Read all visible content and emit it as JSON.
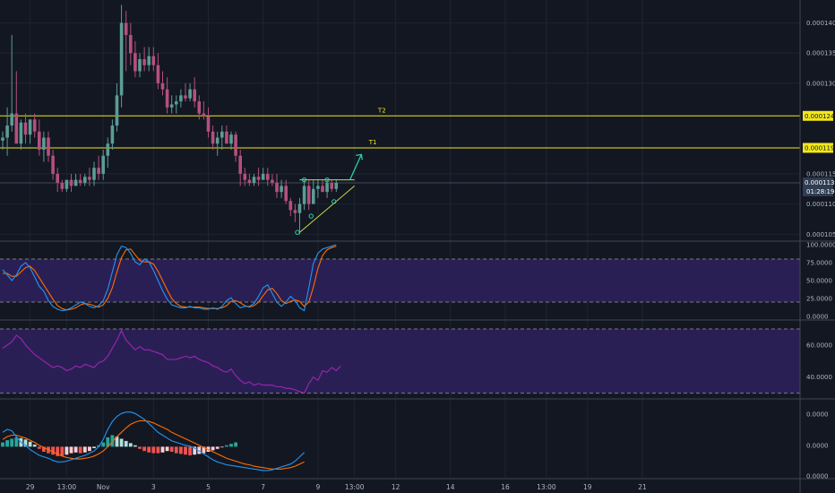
{
  "chart_data": {
    "type": "candlestick",
    "price_pane": {
      "ylim": [
        0.000104,
        0.0001435
      ],
      "price_ticks": [
        "0.0001400",
        "0.0001350",
        "0.0001300",
        "0.0001150",
        "0.0001100",
        "0.0001050"
      ],
      "target_lines": [
        {
          "name": "T2",
          "price": 0.0001246,
          "label": "0.0001246"
        },
        {
          "name": "T1",
          "price": 0.0001193,
          "label": "0.0001193"
        }
      ],
      "current_price": {
        "price": 0.0001135,
        "label": "0.0001135",
        "countdown": "01:28:19"
      },
      "candles": [
        [
          0.0001205,
          0.000122,
          0.000119,
          0.000121
        ],
        [
          0.000121,
          0.000126,
          0.000118,
          0.000123
        ],
        [
          0.000123,
          0.000138,
          0.000122,
          0.000125
        ],
        [
          0.000125,
          0.000132,
          0.00012,
          0.00012
        ],
        [
          0.00012,
          0.000124,
          0.000119,
          0.0001235
        ],
        [
          0.0001235,
          0.000125,
          0.00012,
          0.0001215
        ],
        [
          0.0001215,
          0.000124,
          0.00012,
          0.000124
        ],
        [
          0.000124,
          0.000125,
          0.000121,
          0.000122
        ],
        [
          0.000122,
          0.000124,
          0.000118,
          0.000119
        ],
        [
          0.000119,
          0.000122,
          0.000117,
          0.000121
        ],
        [
          0.000121,
          0.000122,
          0.000117,
          0.000118
        ],
        [
          0.000118,
          0.000119,
          0.000114,
          0.000115
        ],
        [
          0.000115,
          0.000116,
          0.000112,
          0.0001135
        ],
        [
          0.0001135,
          0.000114,
          0.000112,
          0.0001125
        ],
        [
          0.0001125,
          0.000114,
          0.000112,
          0.000114
        ],
        [
          0.000114,
          0.000115,
          0.000112,
          0.000113
        ],
        [
          0.000113,
          0.000115,
          0.000113,
          0.000114
        ],
        [
          0.000114,
          0.000115,
          0.000113,
          0.0001135
        ],
        [
          0.0001135,
          0.000115,
          0.000113,
          0.0001145
        ],
        [
          0.0001145,
          0.000116,
          0.000113,
          0.000114
        ],
        [
          0.000114,
          0.000117,
          0.000113,
          0.000116
        ],
        [
          0.000116,
          0.000118,
          0.000114,
          0.000115
        ],
        [
          0.000115,
          0.000119,
          0.000114,
          0.000118
        ],
        [
          0.000118,
          0.000121,
          0.000116,
          0.00012
        ],
        [
          0.00012,
          0.000124,
          0.000119,
          0.000123
        ],
        [
          0.000123,
          0.00013,
          0.000122,
          0.000128
        ],
        [
          0.000128,
          0.000143,
          0.000126,
          0.00014
        ],
        [
          0.00014,
          0.000142,
          0.000132,
          0.000138
        ],
        [
          0.000138,
          0.00014,
          0.000133,
          0.000135
        ],
        [
          0.000135,
          0.000137,
          0.000131,
          0.000132
        ],
        [
          0.000132,
          0.000135,
          0.000131,
          0.000134
        ],
        [
          0.000134,
          0.000136,
          0.000132,
          0.000133
        ],
        [
          0.000133,
          0.000136,
          0.000132,
          0.0001345
        ],
        [
          0.0001345,
          0.000136,
          0.000132,
          0.000133
        ],
        [
          0.000133,
          0.000135,
          0.000129,
          0.00013
        ],
        [
          0.00013,
          0.000132,
          0.000128,
          0.000129
        ],
        [
          0.000129,
          0.000131,
          0.000125,
          0.000126
        ],
        [
          0.000126,
          0.000128,
          0.000125,
          0.0001265
        ],
        [
          0.0001265,
          0.000128,
          0.000125,
          0.000127
        ],
        [
          0.000127,
          0.000129,
          0.000126,
          0.000128
        ],
        [
          0.000128,
          0.00013,
          0.000127,
          0.0001275
        ],
        [
          0.0001275,
          0.00013,
          0.000127,
          0.000129
        ],
        [
          0.000129,
          0.000131,
          0.000126,
          0.000127
        ],
        [
          0.000127,
          0.000128,
          0.000124,
          0.000125
        ],
        [
          0.000125,
          0.000127,
          0.000124,
          0.0001245
        ],
        [
          0.0001245,
          0.000126,
          0.000121,
          0.000122
        ],
        [
          0.000122,
          0.000123,
          0.000119,
          0.00012
        ],
        [
          0.00012,
          0.000122,
          0.000118,
          0.000121
        ],
        [
          0.000121,
          0.000123,
          0.000119,
          0.000122
        ],
        [
          0.000122,
          0.000123,
          0.00012,
          0.00012
        ],
        [
          0.00012,
          0.000122,
          0.000119,
          0.0001215
        ],
        [
          0.0001215,
          0.000122,
          0.000117,
          0.000118
        ],
        [
          0.000118,
          0.000119,
          0.000113,
          0.000115
        ],
        [
          0.000115,
          0.000116,
          0.000113,
          0.000114
        ],
        [
          0.000114,
          0.000115,
          0.000113,
          0.0001135
        ],
        [
          0.0001135,
          0.000115,
          0.000113,
          0.0001145
        ],
        [
          0.0001145,
          0.000116,
          0.000113,
          0.000114
        ],
        [
          0.000114,
          0.000116,
          0.000114,
          0.000115
        ],
        [
          0.000115,
          0.000116,
          0.000113,
          0.000114
        ],
        [
          0.000114,
          0.000115,
          0.000113,
          0.0001135
        ],
        [
          0.0001135,
          0.000115,
          0.000111,
          0.000112
        ],
        [
          0.000112,
          0.000114,
          0.000111,
          0.000113
        ],
        [
          0.000113,
          0.000114,
          0.00011,
          0.0001105
        ],
        [
          0.0001105,
          0.000111,
          0.000108,
          0.000109
        ],
        [
          0.000109,
          0.00011,
          0.000107,
          0.0001085
        ],
        [
          0.0001085,
          0.000111,
          0.000105,
          0.00011
        ],
        [
          0.00011,
          0.000114,
          0.000109,
          0.000113
        ],
        [
          0.000113,
          0.000114,
          0.000109,
          0.00011
        ],
        [
          0.00011,
          0.000114,
          0.00011,
          0.0001125
        ],
        [
          0.0001125,
          0.000114,
          0.000111,
          0.000113
        ],
        [
          0.000113,
          0.000114,
          0.000112,
          0.000112
        ],
        [
          0.000112,
          0.000114,
          0.000111,
          0.0001135
        ],
        [
          0.0001135,
          0.000114,
          0.000112,
          0.0001125
        ],
        [
          0.0001125,
          0.000114,
          0.000112,
          0.0001135
        ]
      ]
    },
    "stoch_pane": {
      "ylim": [
        0,
        100
      ],
      "ticks": [
        "100.0000",
        "75.0000",
        "50.0000",
        "25.0000",
        "0.0000"
      ],
      "band": [
        20,
        80
      ],
      "k": [
        65,
        58,
        50,
        58,
        70,
        75,
        68,
        55,
        42,
        35,
        22,
        14,
        10,
        8,
        9,
        12,
        16,
        20,
        18,
        14,
        12,
        15,
        22,
        38,
        62,
        86,
        98,
        96,
        88,
        76,
        72,
        80,
        76,
        64,
        50,
        36,
        24,
        16,
        14,
        12,
        12,
        14,
        12,
        12,
        10,
        10,
        12,
        10,
        14,
        22,
        26,
        18,
        12,
        14,
        14,
        18,
        28,
        40,
        44,
        32,
        20,
        14,
        20,
        28,
        22,
        12,
        8,
        40,
        74,
        88,
        94,
        96,
        98,
        100
      ],
      "d": [
        60,
        60,
        56,
        56,
        62,
        68,
        70,
        64,
        54,
        44,
        34,
        24,
        15,
        11,
        9,
        10,
        12,
        16,
        18,
        17,
        15,
        13,
        16,
        25,
        40,
        62,
        82,
        93,
        94,
        86,
        78,
        76,
        76,
        73,
        63,
        50,
        37,
        25,
        18,
        14,
        13,
        13,
        13,
        13,
        12,
        11,
        11,
        11,
        12,
        15,
        21,
        22,
        19,
        15,
        13,
        15,
        20,
        29,
        37,
        39,
        32,
        22,
        18,
        21,
        23,
        21,
        14,
        20,
        41,
        67,
        85,
        93,
        96,
        98
      ]
    },
    "rsi_pane": {
      "ylim": [
        27,
        75
      ],
      "ticks": [
        "60.0000",
        "40.0000"
      ],
      "band": [
        30,
        70
      ],
      "values": [
        58,
        60,
        62,
        66,
        64,
        60,
        57,
        54,
        52,
        50,
        48,
        46,
        47,
        46,
        44,
        45,
        47,
        46,
        48,
        47,
        46,
        49,
        50,
        53,
        58,
        63,
        69,
        63,
        60,
        57,
        59,
        57,
        57,
        56,
        55,
        54,
        51,
        51,
        51,
        52,
        53,
        52,
        53,
        51,
        50,
        49,
        47,
        46,
        44,
        43,
        45,
        41,
        38,
        36,
        37,
        35,
        36,
        35,
        35,
        35,
        34,
        34,
        33,
        33,
        32,
        31,
        30,
        36,
        40,
        38,
        44,
        43,
        46,
        44,
        47
      ]
    },
    "macd_pane": {
      "ylim": [
        -4.3e-06,
        6.5e-06
      ],
      "ticks": [
        "0.0000",
        "0.0000",
        "0.0000"
      ],
      "macd": [
        2.0,
        2.4,
        2.2,
        1.4,
        0.6,
        0.2,
        -0.4,
        -0.8,
        -1.2,
        -1.4,
        -1.6,
        -1.9,
        -2.1,
        -2.1,
        -2.0,
        -1.8,
        -1.6,
        -1.4,
        -1.2,
        -0.9,
        -0.6,
        0.0,
        1.0,
        2.4,
        3.5,
        4.2,
        4.6,
        4.8,
        4.8,
        4.6,
        4.2,
        3.8,
        3.2,
        2.6,
        2.0,
        1.6,
        1.2,
        0.8,
        0.6,
        0.4,
        0.2,
        0.1,
        -0.2,
        -0.6,
        -1.0,
        -1.4,
        -1.8,
        -2.1,
        -2.3,
        -2.5,
        -2.6,
        -2.7,
        -2.8,
        -2.9,
        -3.0,
        -3.1,
        -3.2,
        -3.3,
        -3.3,
        -3.2,
        -3.0,
        -2.8,
        -2.6,
        -2.4,
        -2.0,
        -1.4,
        -0.8
      ],
      "signal": [
        1.0,
        1.4,
        1.6,
        1.6,
        1.4,
        1.2,
        0.9,
        0.6,
        0.2,
        -0.1,
        -0.4,
        -0.7,
        -1.0,
        -1.3,
        -1.5,
        -1.6,
        -1.7,
        -1.7,
        -1.6,
        -1.5,
        -1.3,
        -1.0,
        -0.6,
        0.0,
        0.7,
        1.4,
        2.0,
        2.6,
        3.1,
        3.4,
        3.6,
        3.6,
        3.5,
        3.3,
        3.0,
        2.7,
        2.4,
        2.0,
        1.7,
        1.4,
        1.1,
        0.8,
        0.5,
        0.2,
        -0.1,
        -0.4,
        -0.7,
        -1.0,
        -1.3,
        -1.6,
        -1.8,
        -2.0,
        -2.2,
        -2.4,
        -2.5,
        -2.7,
        -2.8,
        -2.9,
        -3.0,
        -3.1,
        -3.1,
        -3.1,
        -3.0,
        -2.9,
        -2.7,
        -2.4,
        -2.1
      ],
      "histogram": [
        0.6,
        0.9,
        1.1,
        1.3,
        1.2,
        1.0,
        0.7,
        0.3,
        -0.3,
        -0.7,
        -0.9,
        -1.1,
        -1.3,
        -1.3,
        -1.1,
        -0.9,
        -0.8,
        -0.9,
        -0.8,
        -0.6,
        -0.2,
        0.2,
        0.6,
        1.3,
        1.6,
        1.4,
        1.1,
        0.8,
        0.5,
        0.2,
        -0.3,
        -0.6,
        -0.8,
        -0.9,
        -0.9,
        -0.8,
        -0.6,
        -0.7,
        -0.9,
        -1.0,
        -1.1,
        -1.2,
        -1.1,
        -1.0,
        -0.9,
        -0.7,
        -0.5,
        -0.3,
        -0.1,
        0.2,
        0.4,
        0.6
      ]
    },
    "time_ticks": [
      {
        "label": "29",
        "bar": 6
      },
      {
        "label": "13:00",
        "bar": 14
      },
      {
        "label": "Nov",
        "bar": 22
      },
      {
        "label": "3",
        "bar": 33
      },
      {
        "label": "5",
        "bar": 45
      },
      {
        "label": "7",
        "bar": 57
      },
      {
        "label": "9",
        "bar": 69
      },
      {
        "label": "13:00",
        "bar": 77
      },
      {
        "label": "12",
        "bar": 86
      },
      {
        "label": "14",
        "bar": 98
      },
      {
        "label": "16",
        "bar": 110
      },
      {
        "label": "13:00",
        "bar": 119
      },
      {
        "label": "19",
        "bar": 128
      },
      {
        "label": "21",
        "bar": 140
      }
    ],
    "colors": {
      "bg": "#131722",
      "grid": "#1e2433",
      "up": "#26a69a",
      "down": "#ef5350",
      "up_candle": "#5b9c96",
      "down_candle": "#b4507c",
      "target_line": "#f2e71a",
      "pattern": "#c9d944",
      "arrow": "#2bd1a3",
      "stoch_k": "#2196f3",
      "stoch_d": "#ff6d00",
      "band_fill": "#2a1f55",
      "rsi": "#9c27b0",
      "macd": "#2196f3",
      "signal": "#ff6d00",
      "hist_up_strong": "#26a69a",
      "hist_up_weak": "#b2dfdb",
      "hist_down_strong": "#ef5350",
      "hist_down_weak": "#ffcdd2",
      "axis_text": "#b2b5be",
      "label_bg_yellow": "#f2e71a",
      "price_label_bg": "#2e3d52"
    }
  }
}
